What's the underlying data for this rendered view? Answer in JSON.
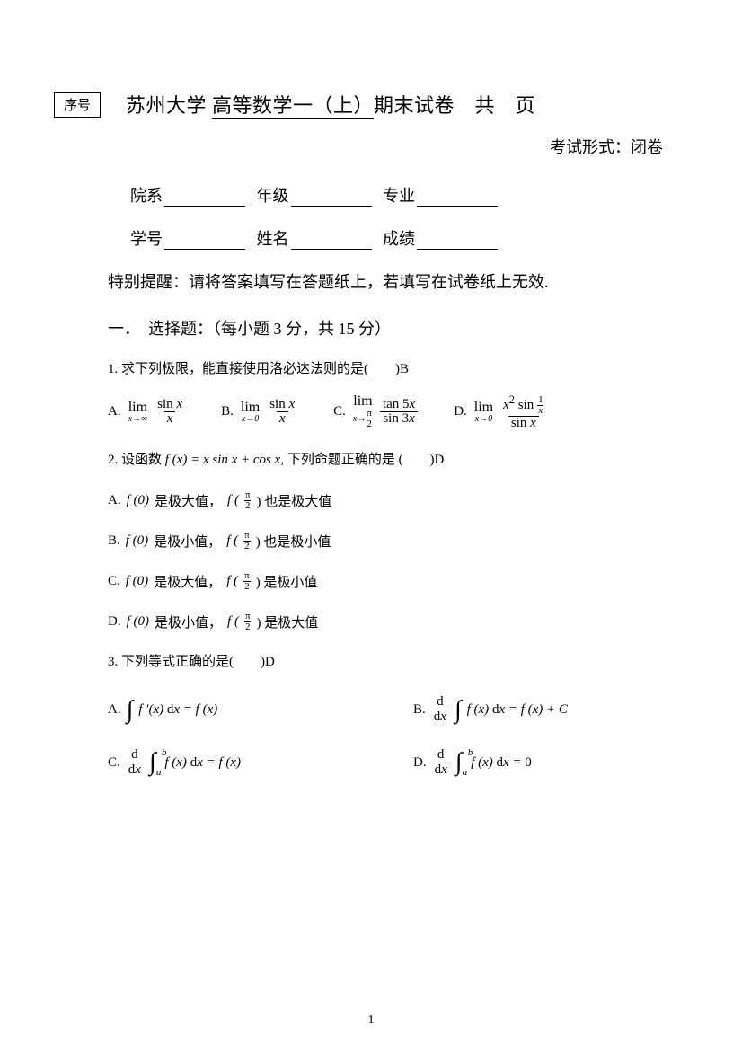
{
  "serial_label": "序号",
  "title_prefix": "苏州大学 ",
  "title_course": "高等数学一（上）",
  "title_suffix": "期末试卷　共　页",
  "exam_type": "考试形式：闭卷",
  "form": {
    "dept": "院系",
    "grade": "年级",
    "major": "专业",
    "id": "学号",
    "name": "姓名",
    "score": "成绩"
  },
  "reminder": "特别提醒：请将答案填写在答题纸上，若填写在试卷纸上无效.",
  "section1": "一．　选择题：（每小题 3 分，共 15 分）",
  "q1": {
    "stem": "1.  求下列极限，能直接使用洛必达法则的是(　　)B",
    "labels": {
      "A": "A.",
      "B": "B.",
      "C": "C.",
      "D": "D."
    }
  },
  "q2": {
    "stem_pre": "2.  设函数 ",
    "stem_fx": "f (x) = x sin x + cos x",
    "stem_post": ", 下列命题正确的是 (　　)D",
    "A_pre": "A.  ",
    "A_f0": "f (0)",
    "A_mid": " 是极大值，",
    "A_fpi": "f (",
    "A_tail": ") 也是极大值",
    "B_pre": "B.  ",
    "B_f0": "f (0)",
    "B_mid": " 是极小值，",
    "B_fpi": "f (",
    "B_tail": ") 也是极小值",
    "C_pre": "C.  ",
    "C_f0": "f (0)",
    "C_mid": " 是极大值，",
    "C_fpi": "f (",
    "C_tail": ") 是极小值",
    "D_pre": "D.  ",
    "D_f0": "f (0)",
    "D_mid": " 是极小值，",
    "D_fpi": "f (",
    "D_tail": ") 是极大值"
  },
  "q3": {
    "stem": "3.  下列等式正确的是(　　)D",
    "labels": {
      "A": "A.",
      "B": "B.",
      "C": "C.",
      "D": "D."
    }
  },
  "page_number": "1",
  "colors": {
    "text": "#000000",
    "bg": "#ffffff"
  }
}
